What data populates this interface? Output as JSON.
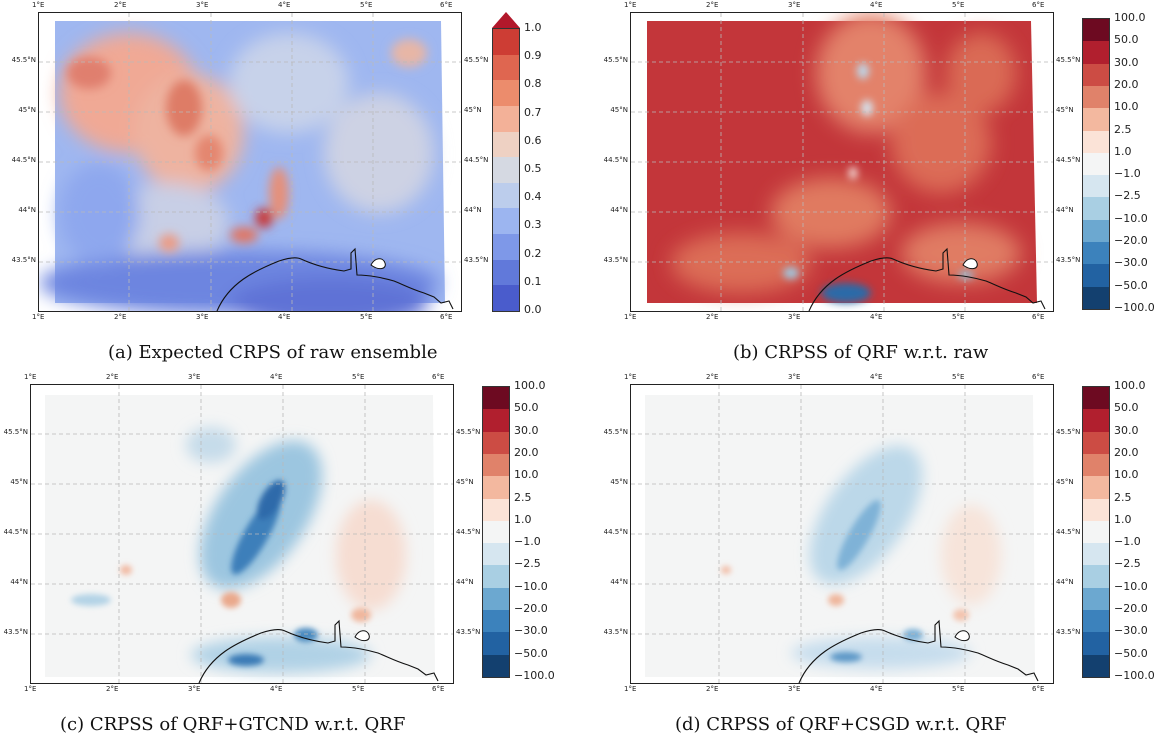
{
  "lon_labels": [
    "1°E",
    "2°E",
    "3°E",
    "4°E",
    "5°E",
    "6°E"
  ],
  "lat_labels": [
    "45.5°N",
    "45°N",
    "44.5°N",
    "44°N",
    "43.5°N"
  ],
  "colorbar_crps": {
    "labels": [
      "1.0",
      "0.9",
      "0.8",
      "0.7",
      "0.6",
      "0.5",
      "0.4",
      "0.3",
      "0.2",
      "0.1",
      "0.0"
    ],
    "colors": [
      "#b2182b",
      "#cd3d34",
      "#df6650",
      "#ec8c6c",
      "#f3b198",
      "#eed1c3",
      "#d5d9e2",
      "#bccdec",
      "#9cb5f0",
      "#7e98e8",
      "#6179da",
      "#4a5ccc"
    ],
    "extend_top": true
  },
  "colorbar_crpss": {
    "labels": [
      "100.0",
      "50.0",
      "30.0",
      "20.0",
      "10.0",
      "2.5",
      "1.0",
      "−1.0",
      "−2.5",
      "−10.0",
      "−20.0",
      "−30.0",
      "−50.0",
      "−100.0"
    ],
    "colors": [
      "#6d0a21",
      "#b11f2e",
      "#cc4c44",
      "#e0826a",
      "#f3b89f",
      "#fbe3d7",
      "#f4f5f5",
      "#d6e6f0",
      "#a9cfe3",
      "#6ca8d0",
      "#3c82bc",
      "#2262a2",
      "#13406f"
    ]
  },
  "panels": [
    {
      "id": "a",
      "caption": "(a) Expected CRPS of raw ensemble",
      "colorbar": "crps"
    },
    {
      "id": "b",
      "caption": "(b) CRPSS of QRF w.r.t. raw",
      "colorbar": "crpss"
    },
    {
      "id": "c",
      "caption": "(c) CRPSS of QRF+GTCND w.r.t. QRF",
      "colorbar": "crpss"
    },
    {
      "id": "d",
      "caption": "(d) CRPSS of QRF+CSGD w.r.t. QRF",
      "colorbar": "crpss"
    }
  ]
}
